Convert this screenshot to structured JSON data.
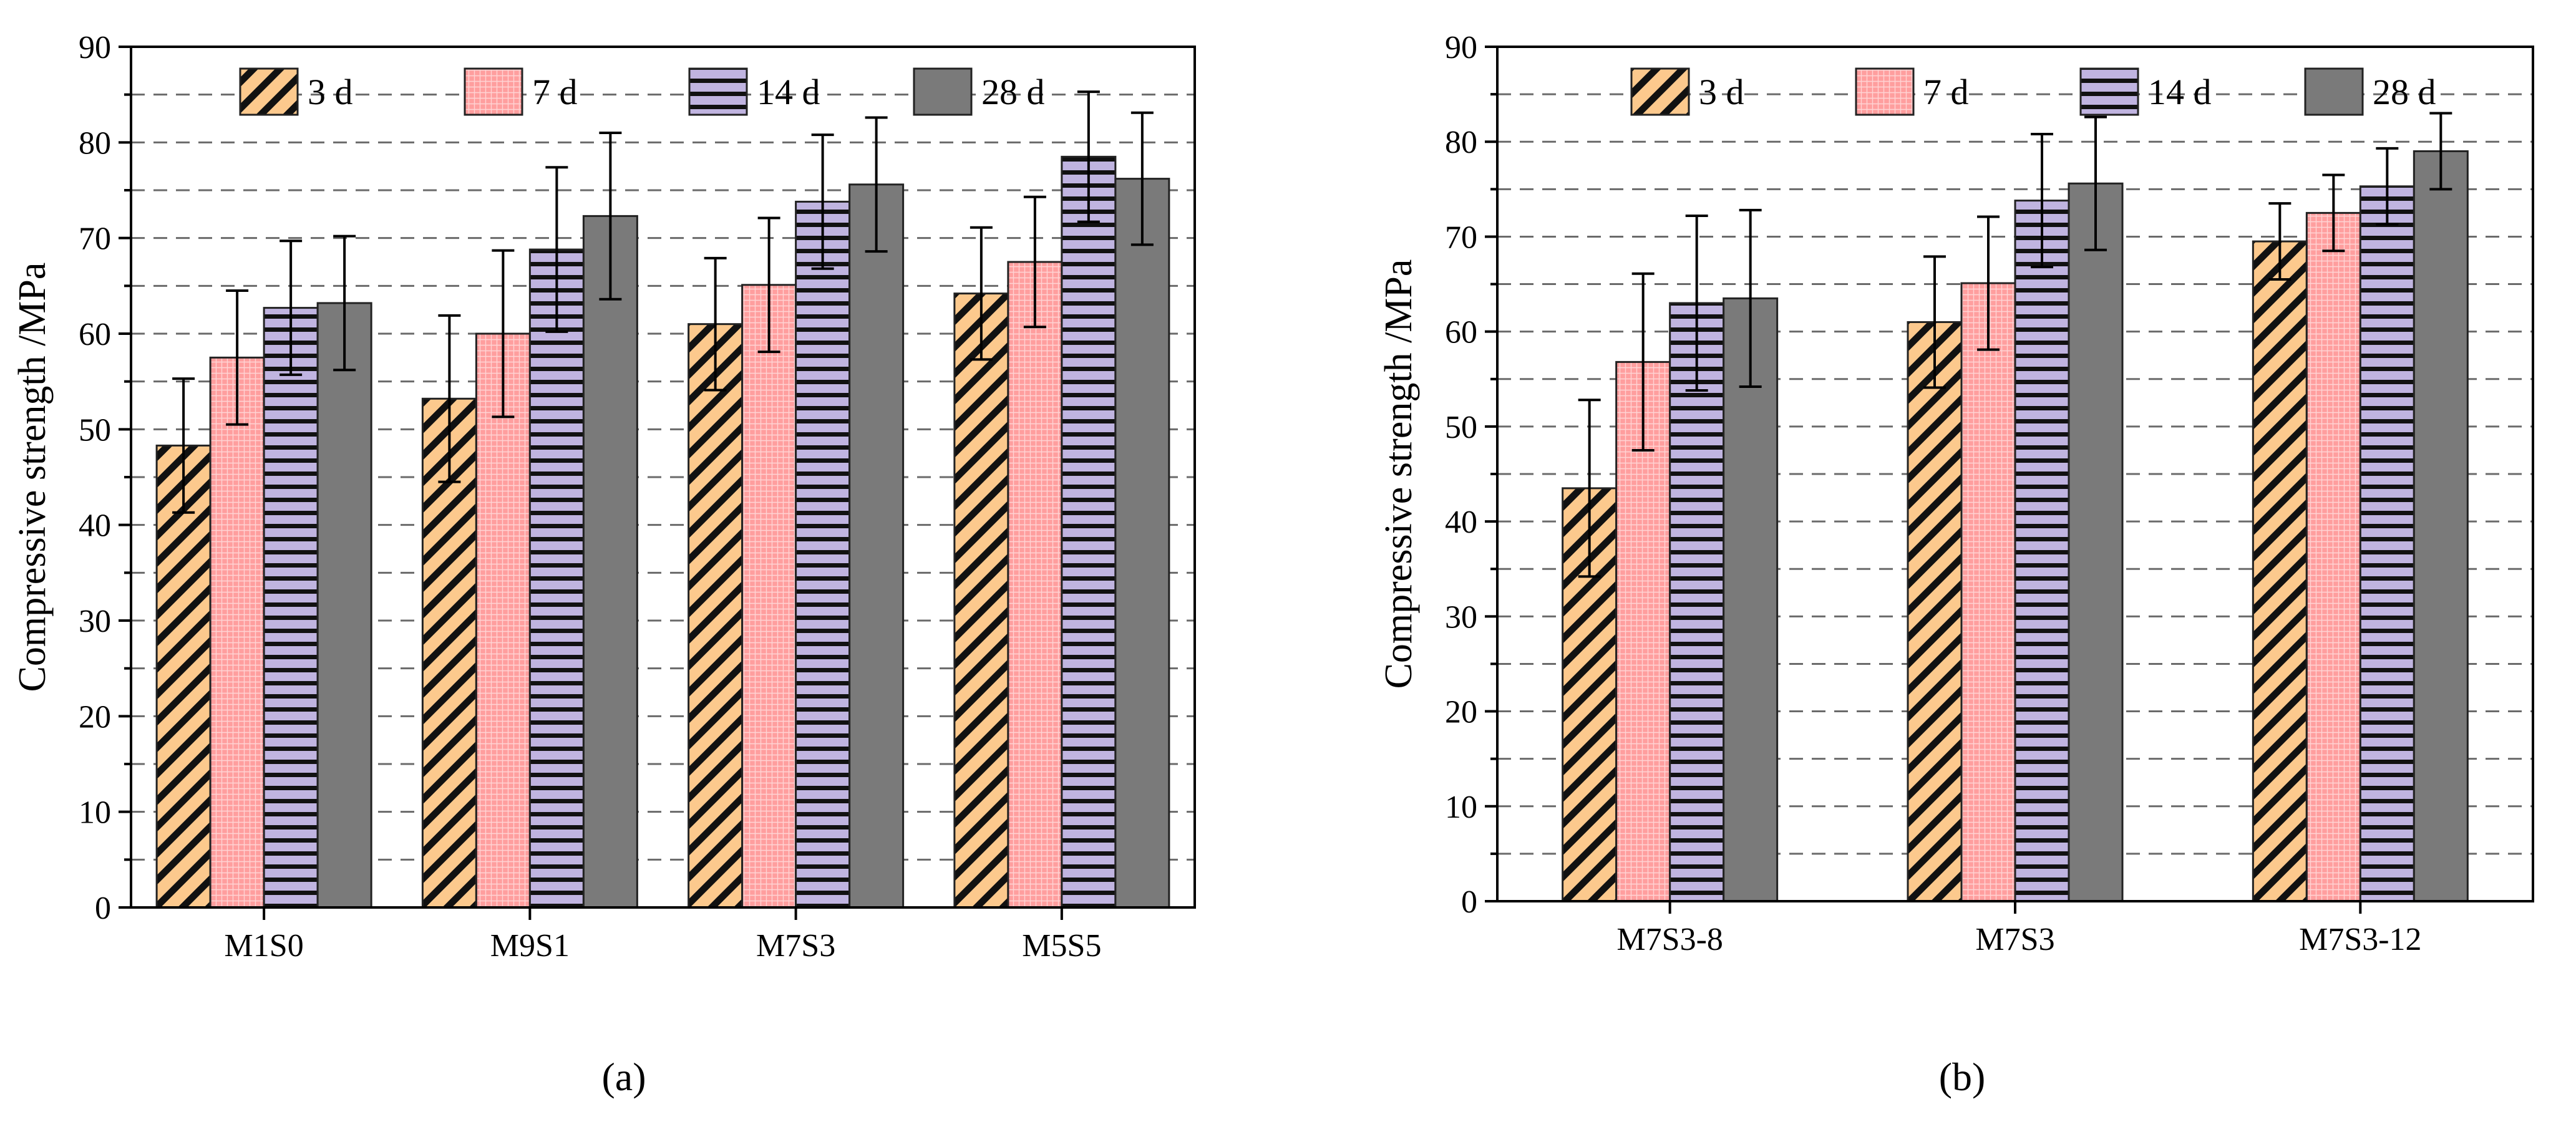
{
  "figure": {
    "panel_labels": [
      "(a)",
      "(b)"
    ]
  },
  "colors": {
    "3 d": "#fcc98d",
    "7 d": "#ff9e9e",
    "14 d": "#c0b4e0",
    "28 d": "#7a7a7a"
  },
  "chart_data": [
    {
      "type": "bar",
      "panel": "(a)",
      "categories": [
        "M1S0",
        "M9S1",
        "M7S3",
        "M5S5"
      ],
      "series": [
        {
          "name": "3 d",
          "values": [
            48.3,
            53.2,
            61.0,
            64.2
          ],
          "errors": [
            7.0,
            8.7,
            6.9,
            6.9
          ]
        },
        {
          "name": "7 d",
          "values": [
            57.5,
            60.0,
            65.1,
            67.5
          ],
          "errors": [
            7.0,
            8.7,
            7.0,
            6.8
          ]
        },
        {
          "name": "14 d",
          "values": [
            62.7,
            68.8,
            73.8,
            78.5
          ],
          "errors": [
            7.0,
            8.6,
            7.0,
            6.8
          ]
        },
        {
          "name": "28 d",
          "values": [
            63.2,
            72.3,
            75.6,
            76.2
          ],
          "errors": [
            7.0,
            8.7,
            7.0,
            6.9
          ]
        }
      ],
      "xlabel": "",
      "ylabel": "Compressive strength /MPa",
      "ylim": [
        0,
        90
      ],
      "yticks": [
        "0",
        "10",
        "20",
        "30",
        "40",
        "50",
        "60",
        "70",
        "80",
        "90"
      ],
      "grid": "dashed, every 5 MPa",
      "legend": "top"
    },
    {
      "type": "bar",
      "panel": "(b)",
      "categories": [
        "M7S3-8",
        "M7S3",
        "M7S3-12"
      ],
      "series": [
        {
          "name": "3 d",
          "values": [
            43.5,
            61.0,
            69.5
          ],
          "errors": [
            9.3,
            6.9,
            4.0
          ]
        },
        {
          "name": "7 d",
          "values": [
            56.8,
            65.1,
            72.5
          ],
          "errors": [
            9.3,
            7.0,
            4.0
          ]
        },
        {
          "name": "14 d",
          "values": [
            63.0,
            73.8,
            75.3
          ],
          "errors": [
            9.2,
            7.0,
            4.0
          ]
        },
        {
          "name": "28 d",
          "values": [
            63.5,
            75.6,
            79.0
          ],
          "errors": [
            9.3,
            7.0,
            4.0
          ]
        }
      ],
      "xlabel": "",
      "ylabel": "Compressive strength /MPa",
      "ylim": [
        0,
        90
      ],
      "yticks": [
        "0",
        "10",
        "20",
        "30",
        "40",
        "50",
        "60",
        "70",
        "80",
        "90"
      ],
      "grid": "dashed, every 5 MPa",
      "legend": "top"
    }
  ]
}
